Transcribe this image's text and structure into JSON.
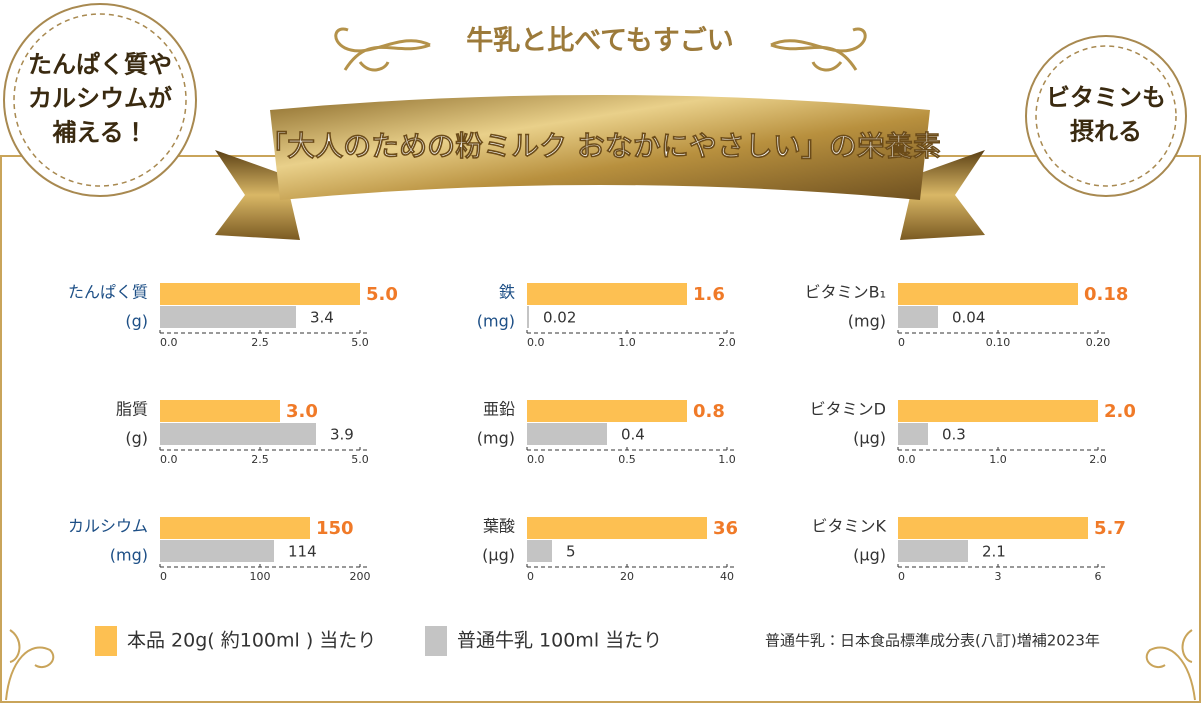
{
  "header": {
    "subtitle": "牛乳と比べてもすごい",
    "title": "「大人のための粉ミルク おなかにやさしい」の栄養素"
  },
  "badges": [
    {
      "lines": [
        "たんぱく質や",
        "カルシウムが",
        "補える！"
      ]
    },
    {
      "lines": [
        "ビタミンも",
        "摂れる"
      ]
    }
  ],
  "legend": [
    {
      "name": "本品 20g( 約100ml ) 当たり",
      "color": "#fdc052"
    },
    {
      "name": "普通牛乳 100ml 当たり",
      "color": "#c4c4c4"
    }
  ],
  "value_label_colors": [
    "#f07a28",
    "#333333"
  ],
  "note": "普通牛乳：日本食品標準成分表(八訂)増補2023年",
  "chart_data": [
    {
      "type": "bar",
      "title": "たんぱく質",
      "unit": "(g)",
      "label_color": "#1d4f86",
      "values": [
        5.0,
        3.4
      ],
      "value_labels": [
        "5.0",
        "3.4"
      ],
      "xlim": [
        0,
        5
      ],
      "xticks": [
        {
          "value": 0,
          "label": "0.0"
        },
        2.5,
        {
          "value": 5,
          "label": "5.0"
        }
      ]
    },
    {
      "type": "bar",
      "title": "脂質",
      "unit": "(g)",
      "label_color": "#333333",
      "values": [
        3.0,
        3.9
      ],
      "value_labels": [
        "3.0",
        "3.9"
      ],
      "xlim": [
        0,
        5
      ],
      "xticks": [
        {
          "value": 0,
          "label": "0.0"
        },
        2.5,
        {
          "value": 5,
          "label": "5.0"
        }
      ]
    },
    {
      "type": "bar",
      "title": "カルシウム",
      "unit": "(mg)",
      "label_color": "#1d4f86",
      "values": [
        150,
        114
      ],
      "xlim": [
        0,
        200
      ],
      "xticks": [
        0,
        100,
        200
      ]
    },
    {
      "type": "bar",
      "title": "鉄",
      "unit": "(mg)",
      "label_color": "#1d4f86",
      "values": [
        1.6,
        0.02
      ],
      "xlim": [
        0,
        2
      ],
      "xticks": [
        {
          "value": 0,
          "label": "0.0"
        },
        {
          "value": 1,
          "label": "1.0"
        },
        {
          "value": 2,
          "label": "2.0"
        }
      ]
    },
    {
      "type": "bar",
      "title": "亜鉛",
      "unit": "(mg)",
      "label_color": "#333333",
      "values": [
        0.8,
        0.4
      ],
      "xlim": [
        0,
        1
      ],
      "xticks": [
        {
          "value": 0,
          "label": "0.0"
        },
        0.5,
        {
          "value": 1,
          "label": "1.0"
        }
      ]
    },
    {
      "type": "bar",
      "title": "葉酸",
      "unit": "(µg)",
      "label_color": "#333333",
      "values": [
        36,
        5
      ],
      "xlim": [
        0,
        40
      ],
      "xticks": [
        0,
        20,
        40
      ]
    },
    {
      "type": "bar",
      "title": "ビタミンB₁",
      "unit": "(mg)",
      "label_color": "#333333",
      "values": [
        0.18,
        0.04
      ],
      "xlim": [
        0,
        0.2
      ],
      "xticks": [
        0,
        {
          "value": 0.1,
          "label": "0.10"
        },
        {
          "value": 0.2,
          "label": "0.20"
        }
      ]
    },
    {
      "type": "bar",
      "title": "ビタミンD",
      "unit": "(µg)",
      "label_color": "#333333",
      "values": [
        2.0,
        0.3
      ],
      "value_labels": [
        "2.0",
        "0.3"
      ],
      "xlim": [
        0,
        2
      ],
      "xticks": [
        {
          "value": 0,
          "label": "0.0"
        },
        {
          "value": 1,
          "label": "1.0"
        },
        {
          "value": 2,
          "label": "2.0"
        }
      ]
    },
    {
      "type": "bar",
      "title": "ビタミンK",
      "unit": "(µg)",
      "label_color": "#333333",
      "values": [
        5.7,
        2.1
      ],
      "xlim": [
        0,
        6
      ],
      "xticks": [
        0,
        3,
        6
      ]
    }
  ]
}
